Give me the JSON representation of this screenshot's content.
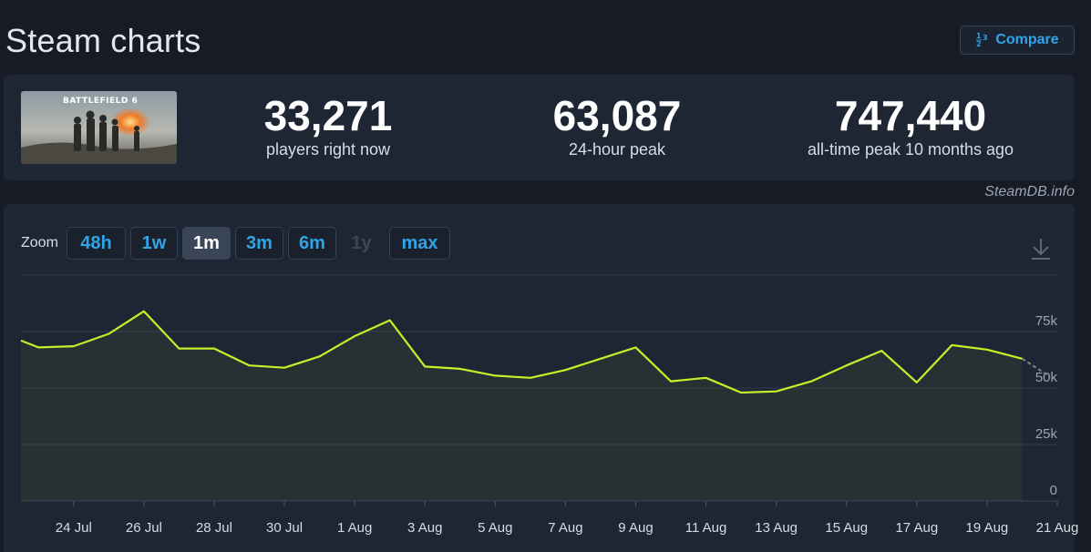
{
  "header": {
    "title": "Steam charts",
    "compare_label": "Compare",
    "compare_icon_text": "1 2 3"
  },
  "game": {
    "thumbnail_text": "BATTLEFIELD 6"
  },
  "stats": [
    {
      "value": "33,271",
      "label": "players right now"
    },
    {
      "value": "63,087",
      "label": "24-hour peak"
    },
    {
      "value": "747,440",
      "label": "all-time peak 10 months ago"
    }
  ],
  "credit": "SteamDB.info",
  "zoom": {
    "label": "Zoom",
    "options": [
      {
        "label": "48h",
        "state": "normal"
      },
      {
        "label": "1w",
        "state": "normal"
      },
      {
        "label": "1m",
        "state": "active"
      },
      {
        "label": "3m",
        "state": "normal"
      },
      {
        "label": "6m",
        "state": "normal"
      },
      {
        "label": "1y",
        "state": "disabled"
      },
      {
        "label": "max",
        "state": "normal"
      }
    ]
  },
  "colors": {
    "line": "#c6ef2a",
    "forecast": "#7a8494",
    "accent": "#2fa4e7",
    "panel": "#1f2633",
    "background": "#171b25"
  },
  "chart_data": {
    "type": "line",
    "title": "",
    "xlabel": "",
    "ylabel": "",
    "ylim": [
      0,
      100000
    ],
    "y_ticks": [
      0,
      25000,
      50000,
      75000
    ],
    "y_tick_labels": [
      "0",
      "25k",
      "50k",
      "75k"
    ],
    "x_ticks": [
      "2025-07-24",
      "2025-07-26",
      "2025-07-28",
      "2025-07-30",
      "2025-08-01",
      "2025-08-03",
      "2025-08-05",
      "2025-08-07",
      "2025-08-09",
      "2025-08-11",
      "2025-08-13",
      "2025-08-15",
      "2025-08-17",
      "2025-08-19",
      "2025-08-21"
    ],
    "x_tick_labels": [
      "24 Jul",
      "26 Jul",
      "28 Jul",
      "30 Jul",
      "1 Aug",
      "3 Aug",
      "5 Aug",
      "7 Aug",
      "9 Aug",
      "11 Aug",
      "13 Aug",
      "15 Aug",
      "17 Aug",
      "19 Aug",
      "21 Aug"
    ],
    "x_range": [
      "2025-07-22T12:00",
      "2025-08-21T00:00"
    ],
    "grid": true,
    "legend": "none",
    "series": [
      {
        "values": [
          [
            "2025-07-22T12:00",
            71000
          ],
          [
            "2025-07-23T00:00",
            68000
          ],
          [
            "2025-07-24T00:00",
            68500
          ],
          [
            "2025-07-25T00:00",
            74000
          ],
          [
            "2025-07-26T00:00",
            84000
          ],
          [
            "2025-07-27T00:00",
            67500
          ],
          [
            "2025-07-28T00:00",
            67500
          ],
          [
            "2025-07-29T00:00",
            60000
          ],
          [
            "2025-07-30T00:00",
            59000
          ],
          [
            "2025-07-31T00:00",
            64000
          ],
          [
            "2025-08-01T00:00",
            73000
          ],
          [
            "2025-08-02T00:00",
            80000
          ],
          [
            "2025-08-03T00:00",
            59500
          ],
          [
            "2025-08-04T00:00",
            58500
          ],
          [
            "2025-08-05T00:00",
            55500
          ],
          [
            "2025-08-06T00:00",
            54500
          ],
          [
            "2025-08-07T00:00",
            58000
          ],
          [
            "2025-08-08T00:00",
            63000
          ],
          [
            "2025-08-09T00:00",
            68000
          ],
          [
            "2025-08-10T00:00",
            53000
          ],
          [
            "2025-08-11T00:00",
            54500
          ],
          [
            "2025-08-12T00:00",
            48000
          ],
          [
            "2025-08-13T00:00",
            48500
          ],
          [
            "2025-08-14T00:00",
            53000
          ],
          [
            "2025-08-15T00:00",
            60000
          ],
          [
            "2025-08-16T00:00",
            66500
          ],
          [
            "2025-08-17T00:00",
            52500
          ],
          [
            "2025-08-18T00:00",
            69000
          ],
          [
            "2025-08-19T00:00",
            67000
          ],
          [
            "2025-08-20T00:00",
            63000
          ]
        ]
      }
    ],
    "forecast_segment": [
      [
        "2025-08-20T00:00",
        63000
      ],
      [
        "2025-08-20T18:00",
        55500
      ]
    ]
  }
}
